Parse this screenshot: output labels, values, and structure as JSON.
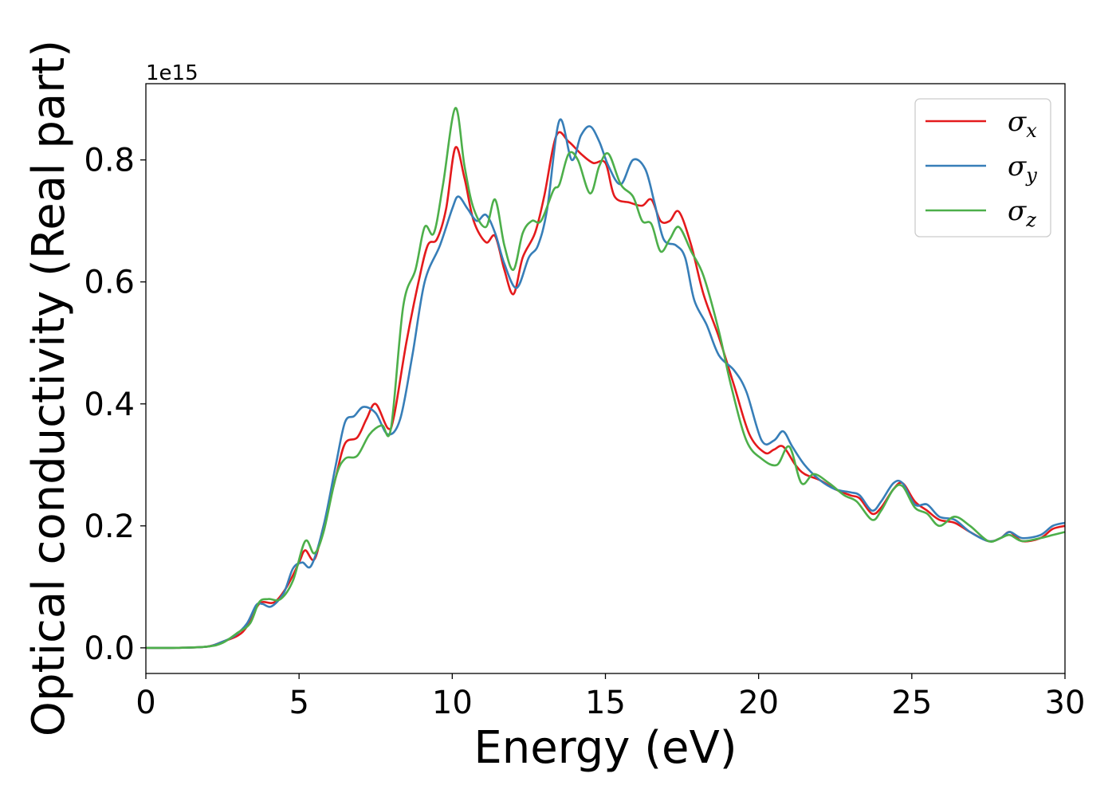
{
  "chart_data": {
    "type": "line",
    "xlabel": "Energy (eV)",
    "ylabel": "Optical conductivity (Real part)",
    "offset_text": "1e15",
    "xlim": [
      0,
      30
    ],
    "ylim": [
      -0.042,
      0.925
    ],
    "xticks": [
      0,
      5,
      10,
      15,
      20,
      25,
      30
    ],
    "xtick_labels": [
      "0",
      "5",
      "10",
      "15",
      "20",
      "25",
      "30"
    ],
    "yticks": [
      0.0,
      0.2,
      0.4,
      0.6,
      0.8
    ],
    "ytick_labels": [
      "0.0",
      "0.2",
      "0.4",
      "0.6",
      "0.8"
    ],
    "grid": false,
    "legend_position": "top-right",
    "series": [
      {
        "name": "σx",
        "symbol": "σ",
        "subscript": "x",
        "color": "#e41a1c",
        "points": [
          [
            0,
            0
          ],
          [
            1,
            0
          ],
          [
            2,
            0.002
          ],
          [
            2.5,
            0.01
          ],
          [
            3,
            0.02
          ],
          [
            3.3,
            0.035
          ],
          [
            3.6,
            0.065
          ],
          [
            3.8,
            0.075
          ],
          [
            4.2,
            0.075
          ],
          [
            4.6,
            0.1
          ],
          [
            5,
            0.14
          ],
          [
            5.2,
            0.16
          ],
          [
            5.5,
            0.145
          ],
          [
            5.8,
            0.2
          ],
          [
            6.2,
            0.28
          ],
          [
            6.5,
            0.335
          ],
          [
            6.9,
            0.345
          ],
          [
            7.2,
            0.375
          ],
          [
            7.5,
            0.4
          ],
          [
            7.9,
            0.36
          ],
          [
            8.1,
            0.38
          ],
          [
            8.5,
            0.5
          ],
          [
            8.9,
            0.6
          ],
          [
            9.2,
            0.66
          ],
          [
            9.5,
            0.67
          ],
          [
            9.8,
            0.72
          ],
          [
            10.1,
            0.82
          ],
          [
            10.4,
            0.77
          ],
          [
            10.7,
            0.7
          ],
          [
            11.1,
            0.665
          ],
          [
            11.4,
            0.675
          ],
          [
            11.7,
            0.62
          ],
          [
            12,
            0.58
          ],
          [
            12.3,
            0.64
          ],
          [
            12.7,
            0.68
          ],
          [
            13,
            0.74
          ],
          [
            13.4,
            0.84
          ],
          [
            13.8,
            0.83
          ],
          [
            14.2,
            0.81
          ],
          [
            14.6,
            0.795
          ],
          [
            15,
            0.795
          ],
          [
            15.3,
            0.74
          ],
          [
            15.8,
            0.73
          ],
          [
            16.2,
            0.725
          ],
          [
            16.5,
            0.735
          ],
          [
            16.8,
            0.7
          ],
          [
            17.1,
            0.7
          ],
          [
            17.4,
            0.715
          ],
          [
            17.8,
            0.66
          ],
          [
            18.2,
            0.58
          ],
          [
            18.7,
            0.51
          ],
          [
            19.2,
            0.43
          ],
          [
            19.7,
            0.35
          ],
          [
            20.2,
            0.32
          ],
          [
            20.5,
            0.325
          ],
          [
            20.8,
            0.33
          ],
          [
            21.2,
            0.3
          ],
          [
            21.5,
            0.285
          ],
          [
            22,
            0.275
          ],
          [
            22.5,
            0.26
          ],
          [
            23,
            0.25
          ],
          [
            23.3,
            0.245
          ],
          [
            23.7,
            0.22
          ],
          [
            24,
            0.23
          ],
          [
            24.4,
            0.26
          ],
          [
            24.7,
            0.27
          ],
          [
            25.1,
            0.24
          ],
          [
            25.5,
            0.225
          ],
          [
            25.9,
            0.21
          ],
          [
            26.4,
            0.205
          ],
          [
            26.9,
            0.19
          ],
          [
            27.5,
            0.175
          ],
          [
            27.9,
            0.18
          ],
          [
            28.2,
            0.19
          ],
          [
            28.6,
            0.175
          ],
          [
            29.2,
            0.18
          ],
          [
            29.6,
            0.195
          ],
          [
            30,
            0.2
          ]
        ]
      },
      {
        "name": "σy",
        "symbol": "σ",
        "subscript": "y",
        "color": "#377eb8",
        "points": [
          [
            0,
            0
          ],
          [
            1,
            0
          ],
          [
            2,
            0.002
          ],
          [
            2.5,
            0.01
          ],
          [
            2.9,
            0.02
          ],
          [
            3.3,
            0.04
          ],
          [
            3.6,
            0.07
          ],
          [
            3.8,
            0.072
          ],
          [
            4.1,
            0.068
          ],
          [
            4.5,
            0.09
          ],
          [
            4.8,
            0.13
          ],
          [
            5.1,
            0.14
          ],
          [
            5.4,
            0.135
          ],
          [
            5.8,
            0.2
          ],
          [
            6.2,
            0.3
          ],
          [
            6.5,
            0.37
          ],
          [
            6.8,
            0.38
          ],
          [
            7.1,
            0.395
          ],
          [
            7.5,
            0.385
          ],
          [
            7.9,
            0.35
          ],
          [
            8.3,
            0.375
          ],
          [
            8.7,
            0.48
          ],
          [
            9.1,
            0.6
          ],
          [
            9.6,
            0.66
          ],
          [
            10,
            0.72
          ],
          [
            10.2,
            0.74
          ],
          [
            10.5,
            0.72
          ],
          [
            10.8,
            0.7
          ],
          [
            11.1,
            0.71
          ],
          [
            11.4,
            0.68
          ],
          [
            11.7,
            0.63
          ],
          [
            12.1,
            0.59
          ],
          [
            12.5,
            0.64
          ],
          [
            12.8,
            0.66
          ],
          [
            13.1,
            0.72
          ],
          [
            13.5,
            0.865
          ],
          [
            13.9,
            0.8
          ],
          [
            14.2,
            0.84
          ],
          [
            14.5,
            0.855
          ],
          [
            14.8,
            0.83
          ],
          [
            15.1,
            0.79
          ],
          [
            15.5,
            0.76
          ],
          [
            15.9,
            0.8
          ],
          [
            16.3,
            0.785
          ],
          [
            16.6,
            0.73
          ],
          [
            16.9,
            0.67
          ],
          [
            17.3,
            0.66
          ],
          [
            17.6,
            0.64
          ],
          [
            17.9,
            0.57
          ],
          [
            18.3,
            0.53
          ],
          [
            18.7,
            0.48
          ],
          [
            19.2,
            0.455
          ],
          [
            19.6,
            0.42
          ],
          [
            20.1,
            0.34
          ],
          [
            20.5,
            0.34
          ],
          [
            20.8,
            0.355
          ],
          [
            21.1,
            0.33
          ],
          [
            21.5,
            0.3
          ],
          [
            22,
            0.275
          ],
          [
            22.5,
            0.26
          ],
          [
            23,
            0.255
          ],
          [
            23.3,
            0.25
          ],
          [
            23.7,
            0.225
          ],
          [
            24,
            0.24
          ],
          [
            24.4,
            0.27
          ],
          [
            24.7,
            0.27
          ],
          [
            25.1,
            0.235
          ],
          [
            25.5,
            0.235
          ],
          [
            25.9,
            0.215
          ],
          [
            26.4,
            0.21
          ],
          [
            26.9,
            0.19
          ],
          [
            27.5,
            0.175
          ],
          [
            27.9,
            0.18
          ],
          [
            28.2,
            0.19
          ],
          [
            28.6,
            0.18
          ],
          [
            29.2,
            0.185
          ],
          [
            29.6,
            0.2
          ],
          [
            30,
            0.205
          ]
        ]
      },
      {
        "name": "σz",
        "symbol": "σ",
        "subscript": "z",
        "color": "#4daf4a",
        "points": [
          [
            0,
            0
          ],
          [
            1,
            0
          ],
          [
            2,
            0.002
          ],
          [
            2.5,
            0.008
          ],
          [
            3,
            0.025
          ],
          [
            3.4,
            0.04
          ],
          [
            3.7,
            0.075
          ],
          [
            4,
            0.08
          ],
          [
            4.4,
            0.08
          ],
          [
            4.8,
            0.11
          ],
          [
            5.2,
            0.175
          ],
          [
            5.5,
            0.155
          ],
          [
            5.8,
            0.19
          ],
          [
            6.2,
            0.28
          ],
          [
            6.5,
            0.31
          ],
          [
            6.9,
            0.315
          ],
          [
            7.3,
            0.35
          ],
          [
            7.7,
            0.365
          ],
          [
            8,
            0.36
          ],
          [
            8.4,
            0.56
          ],
          [
            8.8,
            0.62
          ],
          [
            9.1,
            0.69
          ],
          [
            9.4,
            0.68
          ],
          [
            9.7,
            0.76
          ],
          [
            10.1,
            0.885
          ],
          [
            10.4,
            0.79
          ],
          [
            10.7,
            0.72
          ],
          [
            11.1,
            0.69
          ],
          [
            11.4,
            0.735
          ],
          [
            11.7,
            0.66
          ],
          [
            12,
            0.62
          ],
          [
            12.3,
            0.68
          ],
          [
            12.6,
            0.7
          ],
          [
            12.9,
            0.7
          ],
          [
            13.3,
            0.75
          ],
          [
            13.5,
            0.76
          ],
          [
            13.8,
            0.81
          ],
          [
            14.1,
            0.8
          ],
          [
            14.5,
            0.745
          ],
          [
            14.8,
            0.79
          ],
          [
            15.1,
            0.81
          ],
          [
            15.5,
            0.76
          ],
          [
            15.9,
            0.74
          ],
          [
            16.2,
            0.7
          ],
          [
            16.5,
            0.695
          ],
          [
            16.8,
            0.65
          ],
          [
            17.1,
            0.67
          ],
          [
            17.4,
            0.69
          ],
          [
            17.8,
            0.65
          ],
          [
            18.2,
            0.61
          ],
          [
            18.7,
            0.52
          ],
          [
            19.1,
            0.43
          ],
          [
            19.6,
            0.34
          ],
          [
            20.1,
            0.31
          ],
          [
            20.6,
            0.3
          ],
          [
            21,
            0.33
          ],
          [
            21.4,
            0.27
          ],
          [
            21.8,
            0.285
          ],
          [
            22.3,
            0.27
          ],
          [
            22.8,
            0.25
          ],
          [
            23.2,
            0.24
          ],
          [
            23.7,
            0.21
          ],
          [
            24,
            0.225
          ],
          [
            24.4,
            0.26
          ],
          [
            24.7,
            0.265
          ],
          [
            25.1,
            0.23
          ],
          [
            25.5,
            0.22
          ],
          [
            25.9,
            0.2
          ],
          [
            26.4,
            0.215
          ],
          [
            26.9,
            0.2
          ],
          [
            27.5,
            0.175
          ],
          [
            27.9,
            0.18
          ],
          [
            28.2,
            0.185
          ],
          [
            28.6,
            0.175
          ],
          [
            29.2,
            0.18
          ],
          [
            29.6,
            0.185
          ],
          [
            30,
            0.19
          ]
        ]
      }
    ]
  }
}
